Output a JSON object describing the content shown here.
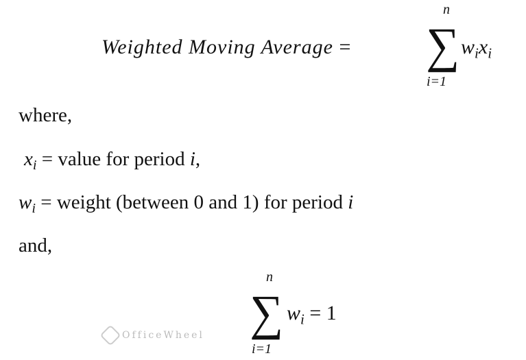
{
  "formula1": {
    "lhs": "Weighted Moving Average",
    "equals": "=",
    "upper": "n",
    "lower": "i=1",
    "term": {
      "w": "w",
      "x": "x",
      "sub": "i"
    }
  },
  "where_label": "where,",
  "definitions": [
    {
      "var": "x",
      "sub": "i",
      "text": " = value for period ",
      "tail": "i",
      "punct": ","
    },
    {
      "var": "w",
      "sub": "i",
      "text": " = weight (between 0 and 1) for period ",
      "tail": "i",
      "punct": ""
    }
  ],
  "and_label": "and,",
  "formula2": {
    "upper": "n",
    "lower": "i=1",
    "var": "w",
    "sub": "i",
    "rhs": "= 1"
  },
  "watermark": "OfficeWheel"
}
